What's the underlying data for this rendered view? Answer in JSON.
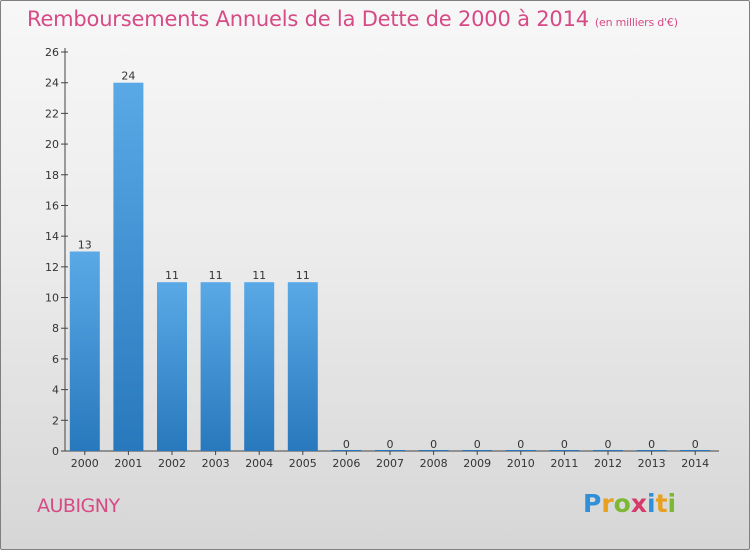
{
  "title": "Remboursements Annuels de la Dette de 2000 à 2014",
  "title_unit": "(en milliers d'€)",
  "city": "AUBIGNY",
  "logo": {
    "letters": [
      "P",
      "r",
      "o",
      "x",
      "i",
      "t",
      "i"
    ],
    "colors": [
      "#2f8fd8",
      "#e8a020",
      "#7cb833",
      "#d63b6a",
      "#2f8fd8",
      "#e8a020",
      "#7cb833"
    ]
  },
  "colors": {
    "bar_top": "#5aa9e6",
    "bar_bottom": "#2878bd",
    "title": "#d64a86"
  },
  "chart_data": {
    "type": "bar",
    "title": "Remboursements Annuels de la Dette de 2000 à 2014",
    "xlabel": "",
    "ylabel": "",
    "categories": [
      "2000",
      "2001",
      "2002",
      "2003",
      "2004",
      "2005",
      "2006",
      "2007",
      "2008",
      "2009",
      "2010",
      "2011",
      "2012",
      "2013",
      "2014"
    ],
    "values": [
      13,
      24,
      11,
      11,
      11,
      11,
      0,
      0,
      0,
      0,
      0,
      0,
      0,
      0,
      0
    ],
    "ylim": [
      0,
      26
    ],
    "yticks": [
      0,
      2,
      4,
      6,
      8,
      10,
      12,
      14,
      16,
      18,
      20,
      22,
      24,
      26
    ],
    "grid": false,
    "legend": "none"
  }
}
